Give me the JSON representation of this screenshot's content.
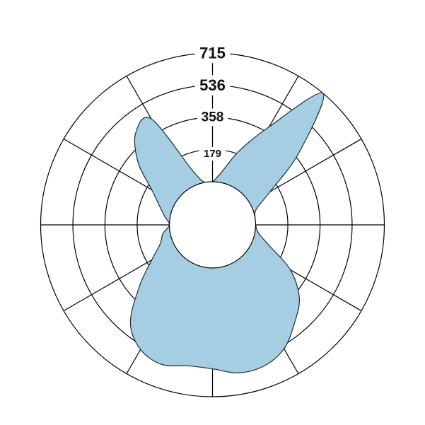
{
  "chart_data": {
    "type": "area",
    "subtype": "polar",
    "title": "",
    "radial_axis": {
      "ticks": [
        179,
        358,
        536,
        715
      ],
      "tick_labels": [
        "179",
        "358",
        "536",
        "715"
      ],
      "range": [
        0,
        715
      ],
      "label_direction": "up"
    },
    "angular_grid_step_deg": 30,
    "grid": true,
    "zero_direction": "up",
    "direction": "clockwise",
    "series": [
      {
        "fill_color": "#a6cee3",
        "angles_deg": [
          0,
          10,
          20,
          30,
          40,
          50,
          60,
          70,
          80,
          90,
          100,
          110,
          120,
          130,
          140,
          150,
          160,
          170,
          180,
          190,
          200,
          210,
          220,
          230,
          240,
          250,
          260,
          270,
          280,
          290,
          300,
          310,
          320,
          330,
          340,
          350
        ],
        "values": [
          0,
          60,
          200,
          390,
          715,
          390,
          130,
          20,
          0,
          0,
          20,
          95,
          260,
          390,
          470,
          555,
          595,
          595,
          560,
          555,
          585,
          560,
          470,
          290,
          150,
          70,
          40,
          0,
          30,
          75,
          150,
          300,
          425,
          440,
          80,
          0
        ]
      }
    ]
  }
}
